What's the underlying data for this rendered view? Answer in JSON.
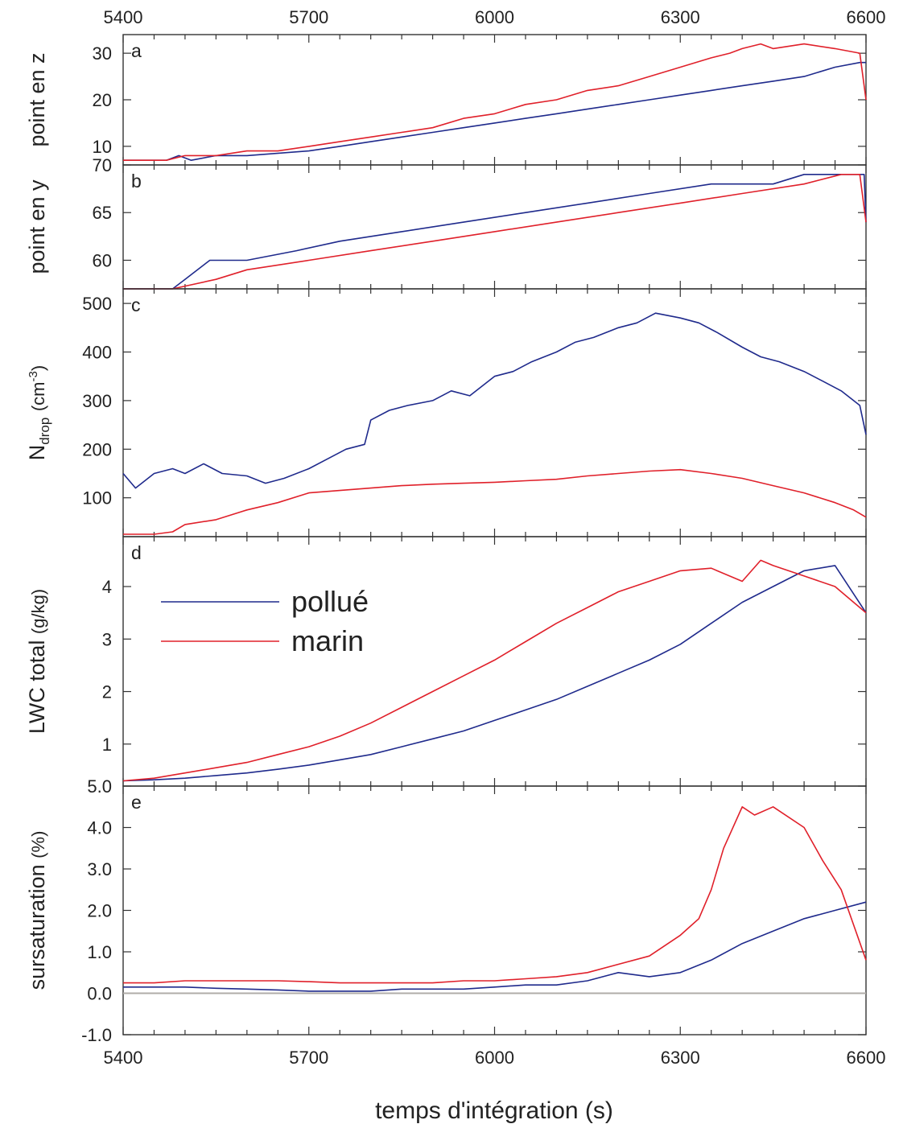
{
  "chart_data": {
    "type": "line",
    "x_axis": {
      "label": "temps d'intégration (s)",
      "range": [
        5400,
        6600
      ],
      "ticks": [
        5400,
        5700,
        6000,
        6300,
        6600
      ],
      "tick_labels": [
        "5400",
        "5700",
        "6000",
        "6300",
        "6600"
      ]
    },
    "colors": {
      "pollué": "#1f2a8c",
      "marin": "#e0202a",
      "baseline": "#b0aca8"
    },
    "legend": {
      "placement": "top-left of panel d",
      "entries": [
        "pollué",
        "marin"
      ]
    },
    "panels": [
      {
        "letter": "a",
        "ylabel": "point en z",
        "ylim": [
          6,
          34
        ],
        "yticks": [
          10,
          20,
          30
        ],
        "ytick_labels": [
          "10",
          "20",
          "30"
        ],
        "series": [
          {
            "name": "pollué",
            "x": [
              5400,
              5450,
              5470,
              5490,
              5510,
              5550,
              5600,
              5700,
              5750,
              5800,
              5850,
              5900,
              5950,
              6000,
              6050,
              6100,
              6150,
              6200,
              6250,
              6300,
              6350,
              6400,
              6450,
              6500,
              6550,
              6590,
              6600
            ],
            "y": [
              7,
              7,
              7,
              8,
              7,
              8,
              8,
              9,
              10,
              11,
              12,
              13,
              14,
              15,
              16,
              17,
              18,
              19,
              20,
              21,
              22,
              23,
              24,
              25,
              27,
              28,
              28
            ]
          },
          {
            "name": "marin",
            "x": [
              5400,
              5470,
              5500,
              5550,
              5600,
              5650,
              5700,
              5750,
              5800,
              5850,
              5900,
              5950,
              6000,
              6050,
              6100,
              6150,
              6200,
              6250,
              6300,
              6350,
              6380,
              6400,
              6430,
              6450,
              6500,
              6550,
              6590,
              6600
            ],
            "y": [
              7,
              7,
              8,
              8,
              9,
              9,
              10,
              11,
              12,
              13,
              14,
              16,
              17,
              19,
              20,
              22,
              23,
              25,
              27,
              29,
              30,
              31,
              32,
              31,
              32,
              31,
              30,
              20
            ]
          }
        ]
      },
      {
        "letter": "b",
        "ylabel": "point en y",
        "ylim": [
          57,
          70
        ],
        "yticks": [
          60,
          65,
          70
        ],
        "ytick_labels": [
          "60",
          "65",
          "70"
        ],
        "series": [
          {
            "name": "pollué",
            "x": [
              5400,
              5480,
              5500,
              5540,
              5600,
              5680,
              5750,
              5850,
              5950,
              6050,
              6150,
              6250,
              6350,
              6450,
              6500,
              6550,
              6597,
              6600
            ],
            "y": [
              57,
              57,
              58,
              60,
              60,
              61,
              62,
              63,
              64,
              65,
              66,
              67,
              68,
              68,
              69,
              69,
              69,
              64
            ]
          },
          {
            "name": "marin",
            "x": [
              5400,
              5480,
              5550,
              5600,
              5700,
              5800,
              5900,
              6000,
              6100,
              6200,
              6300,
              6400,
              6500,
              6560,
              6590,
              6600
            ],
            "y": [
              57,
              57,
              58,
              59,
              60,
              61,
              62,
              63,
              64,
              65,
              66,
              67,
              68,
              69,
              69,
              64
            ]
          }
        ]
      },
      {
        "letter": "c",
        "ylabel": "N",
        "ylabel_subscript": "drop",
        "ylabel_unit": "(cm",
        "ylabel_unit_sup": "-3",
        "ylabel_unit_close": ")",
        "ylim": [
          20,
          530
        ],
        "yticks": [
          100,
          200,
          300,
          400,
          500
        ],
        "ytick_labels": [
          "100",
          "200",
          "300",
          "400",
          "500"
        ],
        "series": [
          {
            "name": "pollué",
            "x": [
              5400,
              5420,
              5450,
              5480,
              5500,
              5530,
              5560,
              5600,
              5630,
              5660,
              5700,
              5730,
              5760,
              5790,
              5800,
              5830,
              5860,
              5900,
              5930,
              5960,
              6000,
              6030,
              6060,
              6100,
              6130,
              6160,
              6200,
              6230,
              6260,
              6300,
              6330,
              6360,
              6400,
              6430,
              6460,
              6500,
              6530,
              6560,
              6590,
              6600
            ],
            "y": [
              150,
              120,
              150,
              160,
              150,
              170,
              150,
              145,
              130,
              140,
              160,
              180,
              200,
              210,
              260,
              280,
              290,
              300,
              320,
              310,
              350,
              360,
              380,
              400,
              420,
              430,
              450,
              460,
              480,
              470,
              460,
              440,
              410,
              390,
              380,
              360,
              340,
              320,
              290,
              230
            ]
          },
          {
            "name": "marin",
            "x": [
              5400,
              5450,
              5480,
              5500,
              5550,
              5600,
              5650,
              5700,
              5750,
              5800,
              5850,
              5900,
              5950,
              6000,
              6050,
              6100,
              6150,
              6200,
              6250,
              6300,
              6350,
              6400,
              6450,
              6500,
              6550,
              6580,
              6600
            ],
            "y": [
              25,
              25,
              30,
              45,
              55,
              75,
              90,
              110,
              115,
              120,
              125,
              128,
              130,
              132,
              135,
              138,
              145,
              150,
              155,
              158,
              150,
              140,
              125,
              110,
              90,
              75,
              60
            ]
          }
        ]
      },
      {
        "letter": "d",
        "ylabel": "LWC total",
        "ylabel_unit": "(g/kg)",
        "ylim": [
          0.2,
          4.95
        ],
        "yticks": [
          1,
          2,
          3,
          4
        ],
        "ytick_labels": [
          "1",
          "2",
          "3",
          "4"
        ],
        "series": [
          {
            "name": "pollué",
            "x": [
              5400,
              5450,
              5500,
              5550,
              5600,
              5650,
              5700,
              5750,
              5800,
              5850,
              5900,
              5950,
              6000,
              6050,
              6100,
              6150,
              6200,
              6250,
              6300,
              6350,
              6400,
              6450,
              6500,
              6550,
              6600
            ],
            "y": [
              0.3,
              0.32,
              0.35,
              0.4,
              0.45,
              0.52,
              0.6,
              0.7,
              0.8,
              0.95,
              1.1,
              1.25,
              1.45,
              1.65,
              1.85,
              2.1,
              2.35,
              2.6,
              2.9,
              3.3,
              3.7,
              4.0,
              4.3,
              4.4,
              3.5
            ]
          },
          {
            "name": "marin",
            "x": [
              5400,
              5450,
              5500,
              5550,
              5600,
              5650,
              5700,
              5750,
              5800,
              5850,
              5900,
              5950,
              6000,
              6050,
              6100,
              6150,
              6200,
              6250,
              6300,
              6350,
              6400,
              6430,
              6450,
              6500,
              6550,
              6600
            ],
            "y": [
              0.3,
              0.35,
              0.45,
              0.55,
              0.65,
              0.8,
              0.95,
              1.15,
              1.4,
              1.7,
              2.0,
              2.3,
              2.6,
              2.95,
              3.3,
              3.6,
              3.9,
              4.1,
              4.3,
              4.35,
              4.1,
              4.5,
              4.4,
              4.2,
              4.0,
              3.5
            ]
          }
        ]
      },
      {
        "letter": "e",
        "ylabel": "sursaturation",
        "ylabel_unit": "(%)",
        "ylim": [
          -1.0,
          5.0
        ],
        "yticks": [
          -1.0,
          0.0,
          1.0,
          2.0,
          3.0,
          4.0,
          5.0
        ],
        "ytick_labels": [
          "-1.0",
          "0.0",
          "1.0",
          "2.0",
          "3.0",
          "4.0",
          "5.0"
        ],
        "baseline": 0.0,
        "series": [
          {
            "name": "pollué",
            "x": [
              5400,
              5450,
              5500,
              5550,
              5600,
              5650,
              5700,
              5750,
              5800,
              5850,
              5900,
              5950,
              6000,
              6050,
              6100,
              6150,
              6200,
              6250,
              6300,
              6350,
              6400,
              6450,
              6500,
              6550,
              6600
            ],
            "y": [
              0.15,
              0.15,
              0.15,
              0.12,
              0.1,
              0.08,
              0.05,
              0.05,
              0.05,
              0.1,
              0.1,
              0.1,
              0.15,
              0.2,
              0.2,
              0.3,
              0.5,
              0.4,
              0.5,
              0.8,
              1.2,
              1.5,
              1.8,
              2.0,
              2.2
            ]
          },
          {
            "name": "marin",
            "x": [
              5400,
              5450,
              5500,
              5550,
              5600,
              5650,
              5700,
              5750,
              5800,
              5850,
              5900,
              5950,
              6000,
              6050,
              6100,
              6150,
              6200,
              6250,
              6300,
              6330,
              6350,
              6370,
              6400,
              6420,
              6450,
              6500,
              6530,
              6560,
              6600
            ],
            "y": [
              0.25,
              0.25,
              0.3,
              0.3,
              0.3,
              0.3,
              0.28,
              0.25,
              0.25,
              0.25,
              0.25,
              0.3,
              0.3,
              0.35,
              0.4,
              0.5,
              0.7,
              0.9,
              1.4,
              1.8,
              2.5,
              3.5,
              4.5,
              4.3,
              4.5,
              4.0,
              3.2,
              2.5,
              0.8
            ]
          }
        ]
      }
    ]
  }
}
